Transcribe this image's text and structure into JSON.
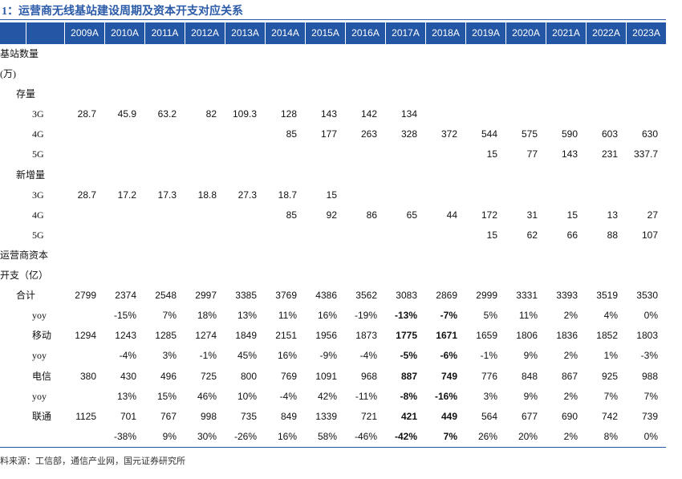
{
  "title": "1：运营商无线基站建设周期及资本开支对应关系",
  "table": {
    "header": [
      "2009A",
      "2010A",
      "2011A",
      "2012A",
      "2013A",
      "2014A",
      "2015A",
      "2016A",
      "2017A",
      "2018A",
      "2019A",
      "2020A",
      "2021A",
      "2022A",
      "2023A"
    ],
    "rows": [
      {
        "label": "基站数量",
        "cells": [
          null,
          null,
          null,
          null,
          null,
          null,
          null,
          null,
          null,
          null,
          null,
          null,
          null,
          null,
          null
        ]
      },
      {
        "label": "(万)",
        "cells": [
          null,
          null,
          null,
          null,
          null,
          null,
          null,
          null,
          null,
          null,
          null,
          null,
          null,
          null,
          null
        ]
      },
      {
        "label": "存量",
        "cells": [
          null,
          null,
          null,
          null,
          null,
          null,
          null,
          null,
          null,
          null,
          null,
          null,
          null,
          null,
          null
        ]
      },
      {
        "label": "3G",
        "cells": [
          "28.7",
          "45.9",
          "63.2",
          "82",
          "109.3",
          "128",
          "143",
          "142",
          "134",
          null,
          null,
          null,
          null,
          null,
          null
        ]
      },
      {
        "label": "4G",
        "cells": [
          null,
          null,
          null,
          null,
          null,
          "85",
          "177",
          "263",
          "328",
          "372",
          "544",
          "575",
          "590",
          "603",
          "630"
        ]
      },
      {
        "label": "5G",
        "cells": [
          null,
          null,
          null,
          null,
          null,
          null,
          null,
          null,
          null,
          null,
          "15",
          "77",
          "143",
          "231",
          "337.7"
        ]
      },
      {
        "label": "新增量",
        "cells": [
          null,
          null,
          null,
          null,
          null,
          null,
          null,
          null,
          null,
          null,
          null,
          null,
          null,
          null,
          null
        ]
      },
      {
        "label": "3G",
        "cells": [
          "28.7",
          "17.2",
          "17.3",
          "18.8",
          "27.3",
          "18.7",
          "15",
          null,
          null,
          null,
          null,
          null,
          null,
          null,
          null
        ]
      },
      {
        "label": "4G",
        "cells": [
          null,
          null,
          null,
          null,
          null,
          "85",
          "92",
          "86",
          "65",
          "44",
          "172",
          "31",
          "15",
          "13",
          "27"
        ]
      },
      {
        "label": "5G",
        "cells": [
          null,
          null,
          null,
          null,
          null,
          null,
          null,
          null,
          null,
          null,
          "15",
          "62",
          "66",
          "88",
          "107"
        ]
      },
      {
        "label": "运营商资本",
        "cells": [
          null,
          null,
          null,
          null,
          null,
          null,
          null,
          null,
          null,
          null,
          null,
          null,
          null,
          null,
          null
        ]
      },
      {
        "label": "开支（亿）",
        "cells": [
          null,
          null,
          null,
          null,
          null,
          null,
          null,
          null,
          null,
          null,
          null,
          null,
          null,
          null,
          null
        ]
      },
      {
        "label": "合计",
        "cells": [
          "2799",
          "2374",
          "2548",
          "2997",
          "3385",
          "3769",
          "4386",
          "3562",
          "3083",
          "2869",
          "2999",
          "3331",
          "3393",
          "3519",
          "3530"
        ]
      },
      {
        "label": "yoy",
        "cells": [
          null,
          "-15%",
          "7%",
          "18%",
          "13%",
          "11%",
          "16%",
          "-19%",
          "-13%",
          "-7%",
          "5%",
          "11%",
          "2%",
          "4%",
          "0%"
        ]
      },
      {
        "label": "移动",
        "cells": [
          "1294",
          "1243",
          "1285",
          "1274",
          "1849",
          "2151",
          "1956",
          "1873",
          "1775",
          "1671",
          "1659",
          "1806",
          "1836",
          "1852",
          "1803"
        ]
      },
      {
        "label": "yoy",
        "cells": [
          null,
          "-4%",
          "3%",
          "-1%",
          "45%",
          "16%",
          "-9%",
          "-4%",
          "-5%",
          "-6%",
          "-1%",
          "9%",
          "2%",
          "1%",
          "-3%"
        ]
      },
      {
        "label": "电信",
        "cells": [
          "380",
          "430",
          "496",
          "725",
          "800",
          "769",
          "1091",
          "968",
          "887",
          "749",
          "776",
          "848",
          "867",
          "925",
          "988"
        ]
      },
      {
        "label": "yoy",
        "cells": [
          null,
          "13%",
          "15%",
          "46%",
          "10%",
          "-4%",
          "42%",
          "-11%",
          "-8%",
          "-16%",
          "3%",
          "9%",
          "2%",
          "7%",
          "7%"
        ]
      },
      {
        "label": "联通",
        "cells": [
          "1125",
          "701",
          "767",
          "998",
          "735",
          "849",
          "1339",
          "721",
          "421",
          "449",
          "564",
          "677",
          "690",
          "742",
          "739"
        ]
      },
      {
        "cells": [
          null,
          "-38%",
          "9%",
          "30%",
          "-26%",
          "16%",
          "58%",
          "-46%",
          "-42%",
          "7%",
          "26%",
          "20%",
          "2%",
          "8%",
          "0%"
        ]
      }
    ]
  },
  "source": "料来源：工信部，通信产业网，国元证券研究所"
}
